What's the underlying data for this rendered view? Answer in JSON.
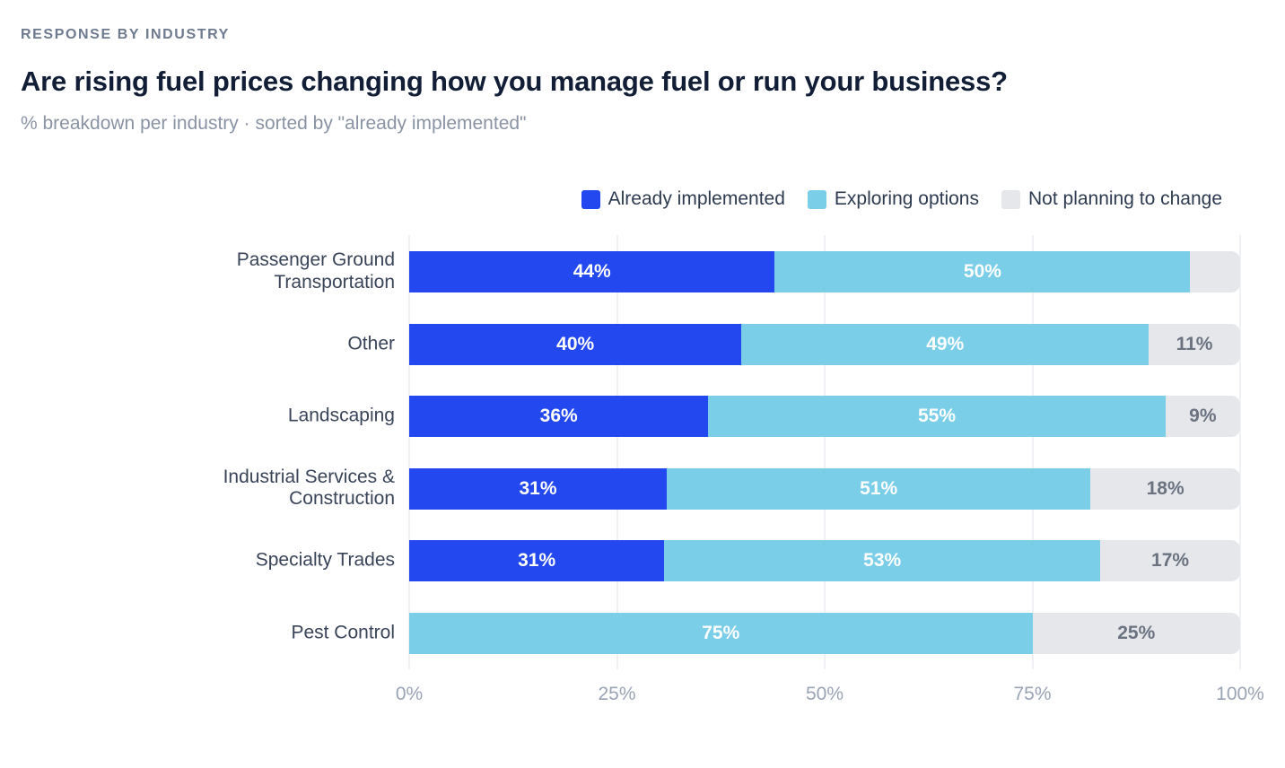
{
  "header": {
    "eyebrow": "RESPONSE BY INDUSTRY",
    "title": "Are rising fuel prices changing how you manage fuel or run your business?",
    "subtitle": "% breakdown per industry · sorted by \"already implemented\""
  },
  "chart_data": {
    "type": "bar",
    "orientation": "horizontal",
    "stacked": true,
    "title": "Are rising fuel prices changing how you manage fuel or run your business?",
    "subtitle": "% breakdown per industry · sorted by \"already implemented\"",
    "grid": "vertical",
    "legend_position": "top-right",
    "legend": [
      "Already implemented",
      "Exploring options",
      "Not planning to change"
    ],
    "segment_colors": [
      "#2448ef",
      "#7bcee8",
      "#e5e7eb"
    ],
    "xlim": [
      0,
      100
    ],
    "x_ticks": [
      "0%",
      "25%",
      "50%",
      "75%",
      "100%"
    ],
    "categories": [
      "Passenger Ground Transportation",
      "Other",
      "Landscaping",
      "Industrial Services & Construction",
      "Specialty Trades",
      "Pest Control"
    ],
    "series": [
      {
        "name": "Already implemented",
        "values": [
          44,
          40,
          36,
          31,
          31,
          0
        ]
      },
      {
        "name": "Exploring options",
        "values": [
          50,
          49,
          55,
          51,
          53,
          75
        ]
      },
      {
        "name": "Not planning to change",
        "values": [
          6,
          11,
          9,
          18,
          17,
          25
        ]
      }
    ],
    "rows": [
      {
        "category": "Passenger Ground Transportation",
        "values": [
          44,
          50,
          6
        ],
        "labels": [
          "44%",
          "50%",
          ""
        ]
      },
      {
        "category": "Other",
        "values": [
          40,
          49,
          11
        ],
        "labels": [
          "40%",
          "49%",
          "11%"
        ]
      },
      {
        "category": "Landscaping",
        "values": [
          36,
          55,
          9
        ],
        "labels": [
          "36%",
          "55%",
          "9%"
        ]
      },
      {
        "category": "Industrial Services & Construction",
        "values": [
          31,
          51,
          18
        ],
        "labels": [
          "31%",
          "51%",
          "18%"
        ]
      },
      {
        "category": "Specialty Trades",
        "values": [
          31,
          53,
          17
        ],
        "labels": [
          "31%",
          "53%",
          "17%"
        ]
      },
      {
        "category": "Pest Control",
        "values": [
          0,
          75,
          25
        ],
        "labels": [
          "",
          "75%",
          "25%"
        ]
      }
    ]
  }
}
